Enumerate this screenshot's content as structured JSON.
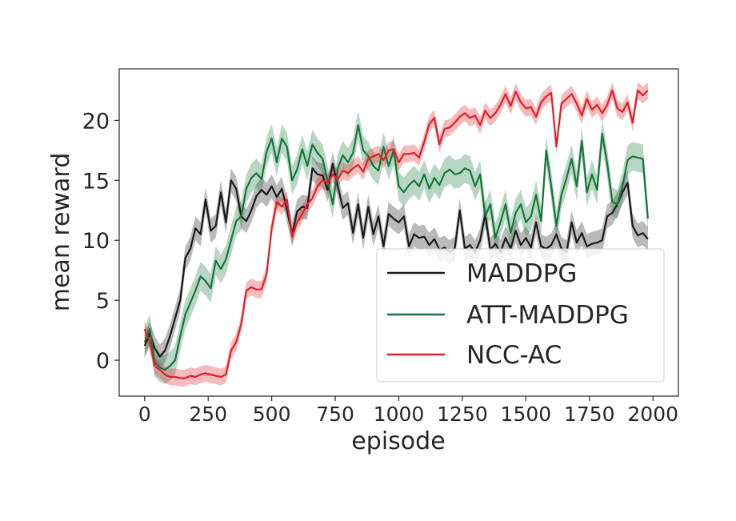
{
  "chart_data": {
    "type": "line",
    "title": "",
    "xlabel": "episode",
    "ylabel": "mean reward",
    "xlim": [
      -100,
      2100
    ],
    "ylim": [
      -3,
      24.3
    ],
    "xticks": [
      0,
      250,
      500,
      750,
      1000,
      1250,
      1500,
      1750,
      2000
    ],
    "xtick_labels": [
      "0",
      "250",
      "500",
      "750",
      "1000",
      "1250",
      "1500",
      "1750",
      "2000"
    ],
    "yticks": [
      0,
      5,
      10,
      15,
      20
    ],
    "ytick_labels": [
      "0",
      "5",
      "10",
      "15",
      "20"
    ],
    "legend_position": "lower-right",
    "x": [
      0,
      20,
      40,
      60,
      80,
      100,
      120,
      140,
      160,
      180,
      200,
      220,
      240,
      260,
      280,
      300,
      320,
      340,
      360,
      380,
      400,
      420,
      440,
      460,
      480,
      500,
      520,
      540,
      560,
      580,
      600,
      620,
      640,
      660,
      680,
      700,
      720,
      740,
      760,
      780,
      800,
      820,
      840,
      860,
      880,
      900,
      920,
      940,
      960,
      980,
      1000,
      1020,
      1040,
      1060,
      1080,
      1100,
      1120,
      1140,
      1160,
      1180,
      1200,
      1220,
      1240,
      1260,
      1280,
      1300,
      1320,
      1340,
      1360,
      1380,
      1400,
      1420,
      1440,
      1460,
      1480,
      1500,
      1520,
      1540,
      1560,
      1580,
      1600,
      1620,
      1640,
      1660,
      1680,
      1700,
      1720,
      1740,
      1760,
      1780,
      1800,
      1820,
      1840,
      1860,
      1880,
      1900,
      1920,
      1940,
      1960,
      1980
    ],
    "series": [
      {
        "name": "MADDPG",
        "color": "#1a1a1a",
        "band_halfwidth": 1.0,
        "values": [
          1.2,
          2.2,
          1.0,
          0.3,
          0.8,
          2.0,
          3.5,
          5.0,
          8.5,
          9.3,
          11.0,
          10.5,
          13.4,
          10.8,
          11.2,
          14.0,
          11.5,
          15.0,
          14.3,
          12.0,
          11.6,
          12.5,
          13.7,
          14.2,
          13.8,
          14.5,
          13.6,
          14.3,
          12.5,
          10.5,
          12.4,
          12.8,
          12.7,
          16.0,
          15.5,
          15.4,
          14.2,
          16.4,
          14.5,
          12.7,
          13.1,
          10.6,
          13.0,
          10.2,
          12.8,
          10.5,
          12.0,
          9.5,
          12.2,
          11.8,
          11.5,
          12.0,
          9.5,
          10.5,
          10.2,
          10.3,
          9.6,
          10.1,
          9.2,
          9.4,
          9.0,
          9.3,
          12.5,
          9.3,
          9.6,
          9.0,
          10.0,
          12.2,
          9.2,
          9.7,
          9.0,
          10.2,
          9.3,
          10.8,
          9.6,
          10.2,
          9.4,
          11.5,
          9.5,
          9.3,
          9.6,
          10.5,
          9.3,
          9.0,
          11.5,
          9.8,
          10.6,
          9.5,
          9.7,
          9.8,
          10.0,
          12.0,
          12.3,
          13.0,
          14.0,
          14.8,
          11.2,
          10.4,
          10.6,
          10.1
        ]
      },
      {
        "name": "ATT-MADDPG",
        "color": "#16763a",
        "band_halfwidth": 1.2,
        "values": [
          1.5,
          2.6,
          -0.2,
          -0.6,
          -0.8,
          -0.5,
          0.0,
          2.0,
          3.8,
          4.8,
          5.8,
          7.0,
          6.6,
          6.0,
          8.3,
          7.6,
          8.4,
          10.0,
          11.6,
          12.0,
          14.3,
          15.2,
          15.6,
          15.1,
          17.4,
          18.5,
          16.5,
          18.5,
          17.8,
          15.0,
          15.9,
          17.6,
          16.2,
          18.0,
          17.3,
          16.8,
          15.0,
          13.0,
          16.0,
          17.1,
          16.5,
          17.3,
          19.6,
          17.5,
          17.0,
          16.2,
          15.8,
          17.8,
          16.2,
          17.5,
          14.5,
          14.0,
          14.6,
          15.0,
          14.5,
          15.5,
          14.3,
          15.2,
          14.6,
          15.6,
          15.9,
          15.5,
          15.6,
          16.0,
          15.8,
          14.5,
          15.5,
          12.0,
          13.0,
          10.2,
          11.5,
          13.0,
          10.6,
          12.3,
          13.0,
          11.5,
          12.0,
          13.8,
          11.6,
          17.5,
          14.5,
          11.2,
          13.8,
          15.2,
          16.8,
          14.5,
          18.3,
          14.0,
          15.5,
          14.2,
          18.9,
          16.4,
          13.2,
          13.0,
          14.5,
          16.7,
          17.0,
          16.9,
          16.8,
          11.8
        ]
      },
      {
        "name": "NCC-AC",
        "color": "#e01f26",
        "band_halfwidth": 0.7,
        "values": [
          2.6,
          1.5,
          -0.5,
          -0.8,
          -1.2,
          -1.4,
          -1.4,
          -1.5,
          -1.5,
          -1.3,
          -1.4,
          -1.2,
          -1.1,
          -1.2,
          -1.3,
          -1.4,
          -1.2,
          0.8,
          1.5,
          3.0,
          5.8,
          6.1,
          5.9,
          5.9,
          7.2,
          11.0,
          13.2,
          12.8,
          13.4,
          10.3,
          11.5,
          12.2,
          13.0,
          13.5,
          14.5,
          15.0,
          14.8,
          15.5,
          15.1,
          15.8,
          15.6,
          16.0,
          16.3,
          15.7,
          16.8,
          17.0,
          17.2,
          16.7,
          17.5,
          17.6,
          16.5,
          17.2,
          17.2,
          17.3,
          16.9,
          18.2,
          19.7,
          20.2,
          18.0,
          19.3,
          19.4,
          19.8,
          20.3,
          20.6,
          20.2,
          20.4,
          19.6,
          20.8,
          20.2,
          20.6,
          21.3,
          22.2,
          21.2,
          22.4,
          21.5,
          21.0,
          21.1,
          20.3,
          21.5,
          22.0,
          22.3,
          17.8,
          21.4,
          21.8,
          22.2,
          21.4,
          20.4,
          21.8,
          20.9,
          21.3,
          20.6,
          21.3,
          22.5,
          21.0,
          20.7,
          21.5,
          19.8,
          22.5,
          22.1,
          22.5
        ]
      }
    ]
  }
}
